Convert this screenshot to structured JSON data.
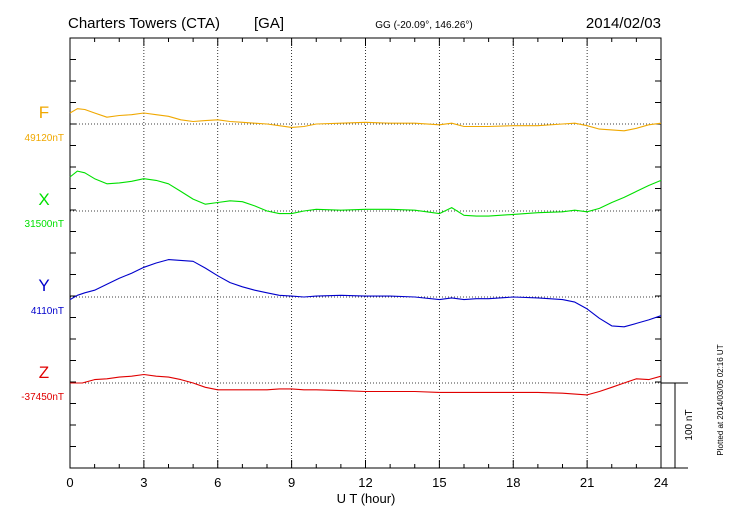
{
  "header": {
    "station": "Charters Towers (CTA)",
    "network": "[GA]",
    "coords": "GG (-20.09°, 146.26°)",
    "date": "2014/02/03"
  },
  "footer": {
    "plotted_note": "Plotted at 2014/03/05 02:16 UT",
    "scale_label": "100 nT"
  },
  "colors": {
    "F": "#f0a800",
    "X": "#00e000",
    "Y": "#0000cc",
    "Z": "#e00000"
  },
  "chart_data": {
    "type": "line",
    "xlabel": "U T (hour)",
    "xlim": [
      0,
      24
    ],
    "xticks": [
      "0",
      "3",
      "6",
      "9",
      "12",
      "15",
      "18",
      "21",
      "24"
    ],
    "grid": true,
    "scale_bar_nT": 100,
    "series": [
      {
        "name": "F",
        "baseline_label": "49120nT",
        "baseline": 49120,
        "x": [
          0,
          0.3,
          0.6,
          1.0,
          1.5,
          2.0,
          2.5,
          3.0,
          3.5,
          4.0,
          4.5,
          5.0,
          5.5,
          6.0,
          6.5,
          7.0,
          7.5,
          8.0,
          8.5,
          9.0,
          9.5,
          10,
          11,
          12,
          13,
          14,
          15,
          15.5,
          16,
          16.5,
          17,
          18,
          19,
          20,
          20.5,
          21,
          21.5,
          22,
          22.5,
          23,
          23.5,
          24
        ],
        "y": [
          49133,
          49138,
          49137,
          49133,
          49128,
          49130,
          49131,
          49133,
          49131,
          49129,
          49125,
          49123,
          49124,
          49125,
          49123,
          49122,
          49121,
          49120,
          49118,
          49116,
          49117,
          49120,
          49121,
          49122,
          49121,
          49121,
          49119,
          49121,
          49117,
          49117,
          49117,
          49118,
          49118,
          49120,
          49121,
          49118,
          49114,
          49113,
          49112,
          49115,
          49119,
          49121
        ]
      },
      {
        "name": "X",
        "baseline_label": "31500nT",
        "baseline": 31500,
        "x": [
          0,
          0.3,
          0.6,
          1.0,
          1.5,
          2.0,
          2.5,
          3.0,
          3.5,
          4.0,
          4.5,
          5.0,
          5.5,
          6.0,
          6.5,
          7.0,
          7.5,
          8.0,
          8.5,
          9.0,
          9.5,
          10,
          11,
          12,
          13,
          14,
          15,
          15.5,
          16,
          16.5,
          17,
          18,
          19,
          20,
          20.5,
          21,
          21.5,
          22,
          22.5,
          23,
          23.5,
          24
        ],
        "y": [
          31540,
          31547,
          31545,
          31538,
          31532,
          31533,
          31535,
          31538,
          31536,
          31532,
          31523,
          31514,
          31508,
          31510,
          31512,
          31511,
          31506,
          31500,
          31497,
          31497,
          31500,
          31502,
          31501,
          31502,
          31502,
          31501,
          31497,
          31504,
          31495,
          31494,
          31494,
          31496,
          31498,
          31499,
          31501,
          31499,
          31503,
          31510,
          31516,
          31523,
          31530,
          31536
        ]
      },
      {
        "name": "Y",
        "baseline_label": "4110nT",
        "baseline": 4110,
        "x": [
          0,
          0.3,
          0.6,
          1.0,
          1.5,
          2.0,
          2.5,
          3.0,
          3.5,
          4.0,
          4.5,
          5.0,
          5.5,
          6.0,
          6.5,
          7.0,
          7.5,
          8.0,
          8.5,
          9.0,
          9.5,
          10,
          11,
          12,
          13,
          14,
          15,
          15.5,
          16,
          16.5,
          17,
          18,
          19,
          20,
          20.5,
          21,
          21.5,
          22,
          22.5,
          23,
          23.5,
          24
        ],
        "y": [
          4107,
          4112,
          4115,
          4118,
          4125,
          4132,
          4138,
          4145,
          4150,
          4154,
          4153,
          4152,
          4144,
          4135,
          4127,
          4122,
          4118,
          4115,
          4112,
          4111,
          4110,
          4111,
          4112,
          4111,
          4111,
          4110,
          4107,
          4109,
          4107,
          4108,
          4108,
          4110,
          4109,
          4107,
          4104,
          4096,
          4085,
          4076,
          4075,
          4079,
          4083,
          4088
        ]
      },
      {
        "name": "Z",
        "baseline_label": "-37450nT",
        "baseline": -37450,
        "x": [
          0,
          0.5,
          1.0,
          1.5,
          2.0,
          2.5,
          3.0,
          3.5,
          4.0,
          4.5,
          5.0,
          5.5,
          6.0,
          6.5,
          7.0,
          7.5,
          8.0,
          8.5,
          9.0,
          9.5,
          10,
          11,
          12,
          13,
          14,
          15,
          16,
          17,
          18,
          19,
          20,
          20.5,
          21,
          21.5,
          22,
          22.5,
          23,
          23.5,
          24
        ],
        "y": [
          -37450,
          -37450,
          -37446,
          -37445,
          -37443,
          -37442,
          -37440,
          -37442,
          -37443,
          -37446,
          -37450,
          -37455,
          -37458,
          -37458,
          -37458,
          -37458,
          -37458,
          -37457,
          -37457,
          -37458,
          -37458,
          -37459,
          -37460,
          -37460,
          -37460,
          -37461,
          -37461,
          -37461,
          -37461,
          -37461,
          -37462,
          -37463,
          -37464,
          -37460,
          -37455,
          -37450,
          -37445,
          -37446,
          -37442
        ]
      }
    ]
  }
}
